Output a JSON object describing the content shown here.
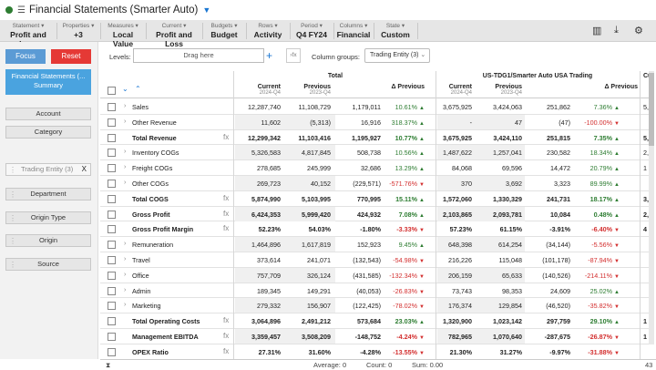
{
  "app": {
    "title": "Financial Statements (Smarter Auto)"
  },
  "filters": [
    {
      "label": "Statement",
      "value": "Profit and Loss"
    },
    {
      "label": "Properties",
      "value": "+3"
    },
    {
      "label": "Measures",
      "value": "Local Value"
    },
    {
      "label": "Current",
      "value": "Profit and Loss"
    },
    {
      "label": "Budgets",
      "value": "Budget"
    },
    {
      "label": "Rows",
      "value": "Activity"
    },
    {
      "label": "Period",
      "value": "Q4 FY24"
    },
    {
      "label": "Columns",
      "value": "Financial"
    },
    {
      "label": "State",
      "value": "Custom"
    }
  ],
  "left": {
    "focus_label": "Focus",
    "reset_label": "Reset",
    "summary_title": "Financial Statements (...",
    "summary_sub": "Summary",
    "dims_top": [
      "Account",
      "Category"
    ],
    "active_dim": "Trading Entity (3)",
    "dims_bottom": [
      "Department",
      "Origin Type",
      "Origin",
      "Source"
    ]
  },
  "toolbar": {
    "levels_label": "Levels:",
    "drag_here": "Drag here",
    "fx_label": "›fx",
    "column_groups_label": "Column groups:",
    "column_groups_value": "Trading Entity (3)"
  },
  "grid": {
    "groups": [
      "Total",
      "US-TDG1/Smarter Auto USA Trading",
      "Cu"
    ],
    "cols": [
      {
        "name": "Current",
        "sub": "2024-Q4"
      },
      {
        "name": "Previous",
        "sub": "2023-Q4"
      },
      {
        "name": "Δ Previous",
        "sub": ""
      },
      {
        "name": "Current",
        "sub": "2024-Q4"
      },
      {
        "name": "Previous",
        "sub": "2023-Q4"
      },
      {
        "name": "Δ Previous",
        "sub": ""
      }
    ],
    "rows": [
      {
        "label": "Sales",
        "exp": true,
        "bold": false,
        "fx": false,
        "v": [
          "12,287,740",
          "11,108,729",
          "1,179,011",
          "10.61%",
          "3,675,925",
          "3,424,063",
          "251,862",
          "7.36%"
        ],
        "d1": "up",
        "d2": "up",
        "c": "5,7"
      },
      {
        "label": "Other Revenue",
        "exp": true,
        "bold": false,
        "fx": false,
        "v": [
          "11,602",
          "(5,313)",
          "16,916",
          "318.37%",
          "-",
          "47",
          "(47)",
          "-100.00%"
        ],
        "d1": "up",
        "d2": "down",
        "c": ""
      },
      {
        "label": "Total Revenue",
        "exp": false,
        "bold": true,
        "fx": true,
        "v": [
          "12,299,342",
          "11,103,416",
          "1,195,927",
          "10.77%",
          "3,675,925",
          "3,424,110",
          "251,815",
          "7.35%"
        ],
        "d1": "up",
        "d2": "up",
        "c": "5,79"
      },
      {
        "label": "Inventory COGs",
        "exp": true,
        "bold": false,
        "fx": false,
        "v": [
          "5,326,583",
          "4,817,845",
          "508,738",
          "10.56%",
          "1,487,622",
          "1,257,041",
          "230,582",
          "18.34%"
        ],
        "d1": "up",
        "d2": "up",
        "c": "2,6"
      },
      {
        "label": "Freight COGs",
        "exp": true,
        "bold": false,
        "fx": false,
        "v": [
          "278,685",
          "245,999",
          "32,686",
          "13.29%",
          "84,068",
          "69,596",
          "14,472",
          "20.79%"
        ],
        "d1": "up",
        "d2": "up",
        "c": "1"
      },
      {
        "label": "Other COGs",
        "exp": true,
        "bold": false,
        "fx": false,
        "v": [
          "269,723",
          "40,152",
          "(229,571)",
          "-571.76%",
          "370",
          "3,692",
          "3,323",
          "89.99%"
        ],
        "d1": "down",
        "d2": "up",
        "c": ""
      },
      {
        "label": "Total COGS",
        "exp": false,
        "bold": true,
        "fx": true,
        "v": [
          "5,874,990",
          "5,103,995",
          "770,995",
          "15.11%",
          "1,572,060",
          "1,330,329",
          "241,731",
          "18.17%"
        ],
        "d1": "up",
        "d2": "up",
        "c": "3,06"
      },
      {
        "label": "Gross Profit",
        "exp": false,
        "bold": true,
        "fx": true,
        "v": [
          "6,424,353",
          "5,999,420",
          "424,932",
          "7.08%",
          "2,103,865",
          "2,093,781",
          "10,084",
          "0.48%"
        ],
        "d1": "up",
        "d2": "up",
        "c": "2,73"
      },
      {
        "label": "Gross Profit Margin",
        "exp": false,
        "bold": true,
        "fx": true,
        "v": [
          "52.23%",
          "54.03%",
          "-1.80%",
          "-3.33%",
          "57.23%",
          "61.15%",
          "-3.91%",
          "-6.40%"
        ],
        "d1": "down",
        "d2": "down",
        "c": "4"
      },
      {
        "label": "Remuneration",
        "exp": true,
        "bold": false,
        "fx": false,
        "v": [
          "1,464,896",
          "1,617,819",
          "152,923",
          "9.45%",
          "648,398",
          "614,254",
          "(34,144)",
          "-5.56%"
        ],
        "d1": "up",
        "d2": "down",
        "c": ""
      },
      {
        "label": "Travel",
        "exp": true,
        "bold": false,
        "fx": false,
        "v": [
          "373,614",
          "241,071",
          "(132,543)",
          "-54.98%",
          "216,226",
          "115,048",
          "(101,178)",
          "-87.94%"
        ],
        "d1": "down",
        "d2": "down",
        "c": ""
      },
      {
        "label": "Office",
        "exp": true,
        "bold": false,
        "fx": false,
        "v": [
          "757,709",
          "326,124",
          "(431,585)",
          "-132.34%",
          "206,159",
          "65,633",
          "(140,526)",
          "-214.11%"
        ],
        "d1": "down",
        "d2": "down",
        "c": ""
      },
      {
        "label": "Admin",
        "exp": true,
        "bold": false,
        "fx": false,
        "v": [
          "189,345",
          "149,291",
          "(40,053)",
          "-26.83%",
          "73,743",
          "98,353",
          "24,609",
          "25.02%"
        ],
        "d1": "down",
        "d2": "up",
        "c": ""
      },
      {
        "label": "Marketing",
        "exp": true,
        "bold": false,
        "fx": false,
        "v": [
          "279,332",
          "156,907",
          "(122,425)",
          "-78.02%",
          "176,374",
          "129,854",
          "(46,520)",
          "-35.82%"
        ],
        "d1": "down",
        "d2": "down",
        "c": ""
      },
      {
        "label": "Total Operating Costs",
        "exp": false,
        "bold": true,
        "fx": true,
        "v": [
          "3,064,896",
          "2,491,212",
          "573,684",
          "23.03%",
          "1,320,900",
          "1,023,142",
          "297,759",
          "29.10%"
        ],
        "d1": "up",
        "d2": "up",
        "c": "1"
      },
      {
        "label": "Management EBITDA",
        "exp": false,
        "bold": true,
        "fx": true,
        "v": [
          "3,359,457",
          "3,508,209",
          "-148,752",
          "-4.24%",
          "782,965",
          "1,070,640",
          "-287,675",
          "-26.87%"
        ],
        "d1": "down",
        "d2": "down",
        "c": "1"
      },
      {
        "label": "OPEX Ratio",
        "exp": false,
        "bold": true,
        "fx": true,
        "v": [
          "27.31%",
          "31.60%",
          "-4.28%",
          "-13.55%",
          "21.30%",
          "31.27%",
          "-9.97%",
          "-31.88%"
        ],
        "d1": "down",
        "d2": "down",
        "c": ""
      }
    ]
  },
  "status": {
    "average": "Average: 0",
    "count": "Count: 0",
    "sum": "Sum: 0.00",
    "page": "43"
  },
  "colors": {
    "accent": "#1976d2",
    "reset": "#e53935",
    "focus": "#5b9bd5",
    "summary": "#4aa3df",
    "positive": "#2e7d32",
    "negative": "#d32f2f"
  }
}
